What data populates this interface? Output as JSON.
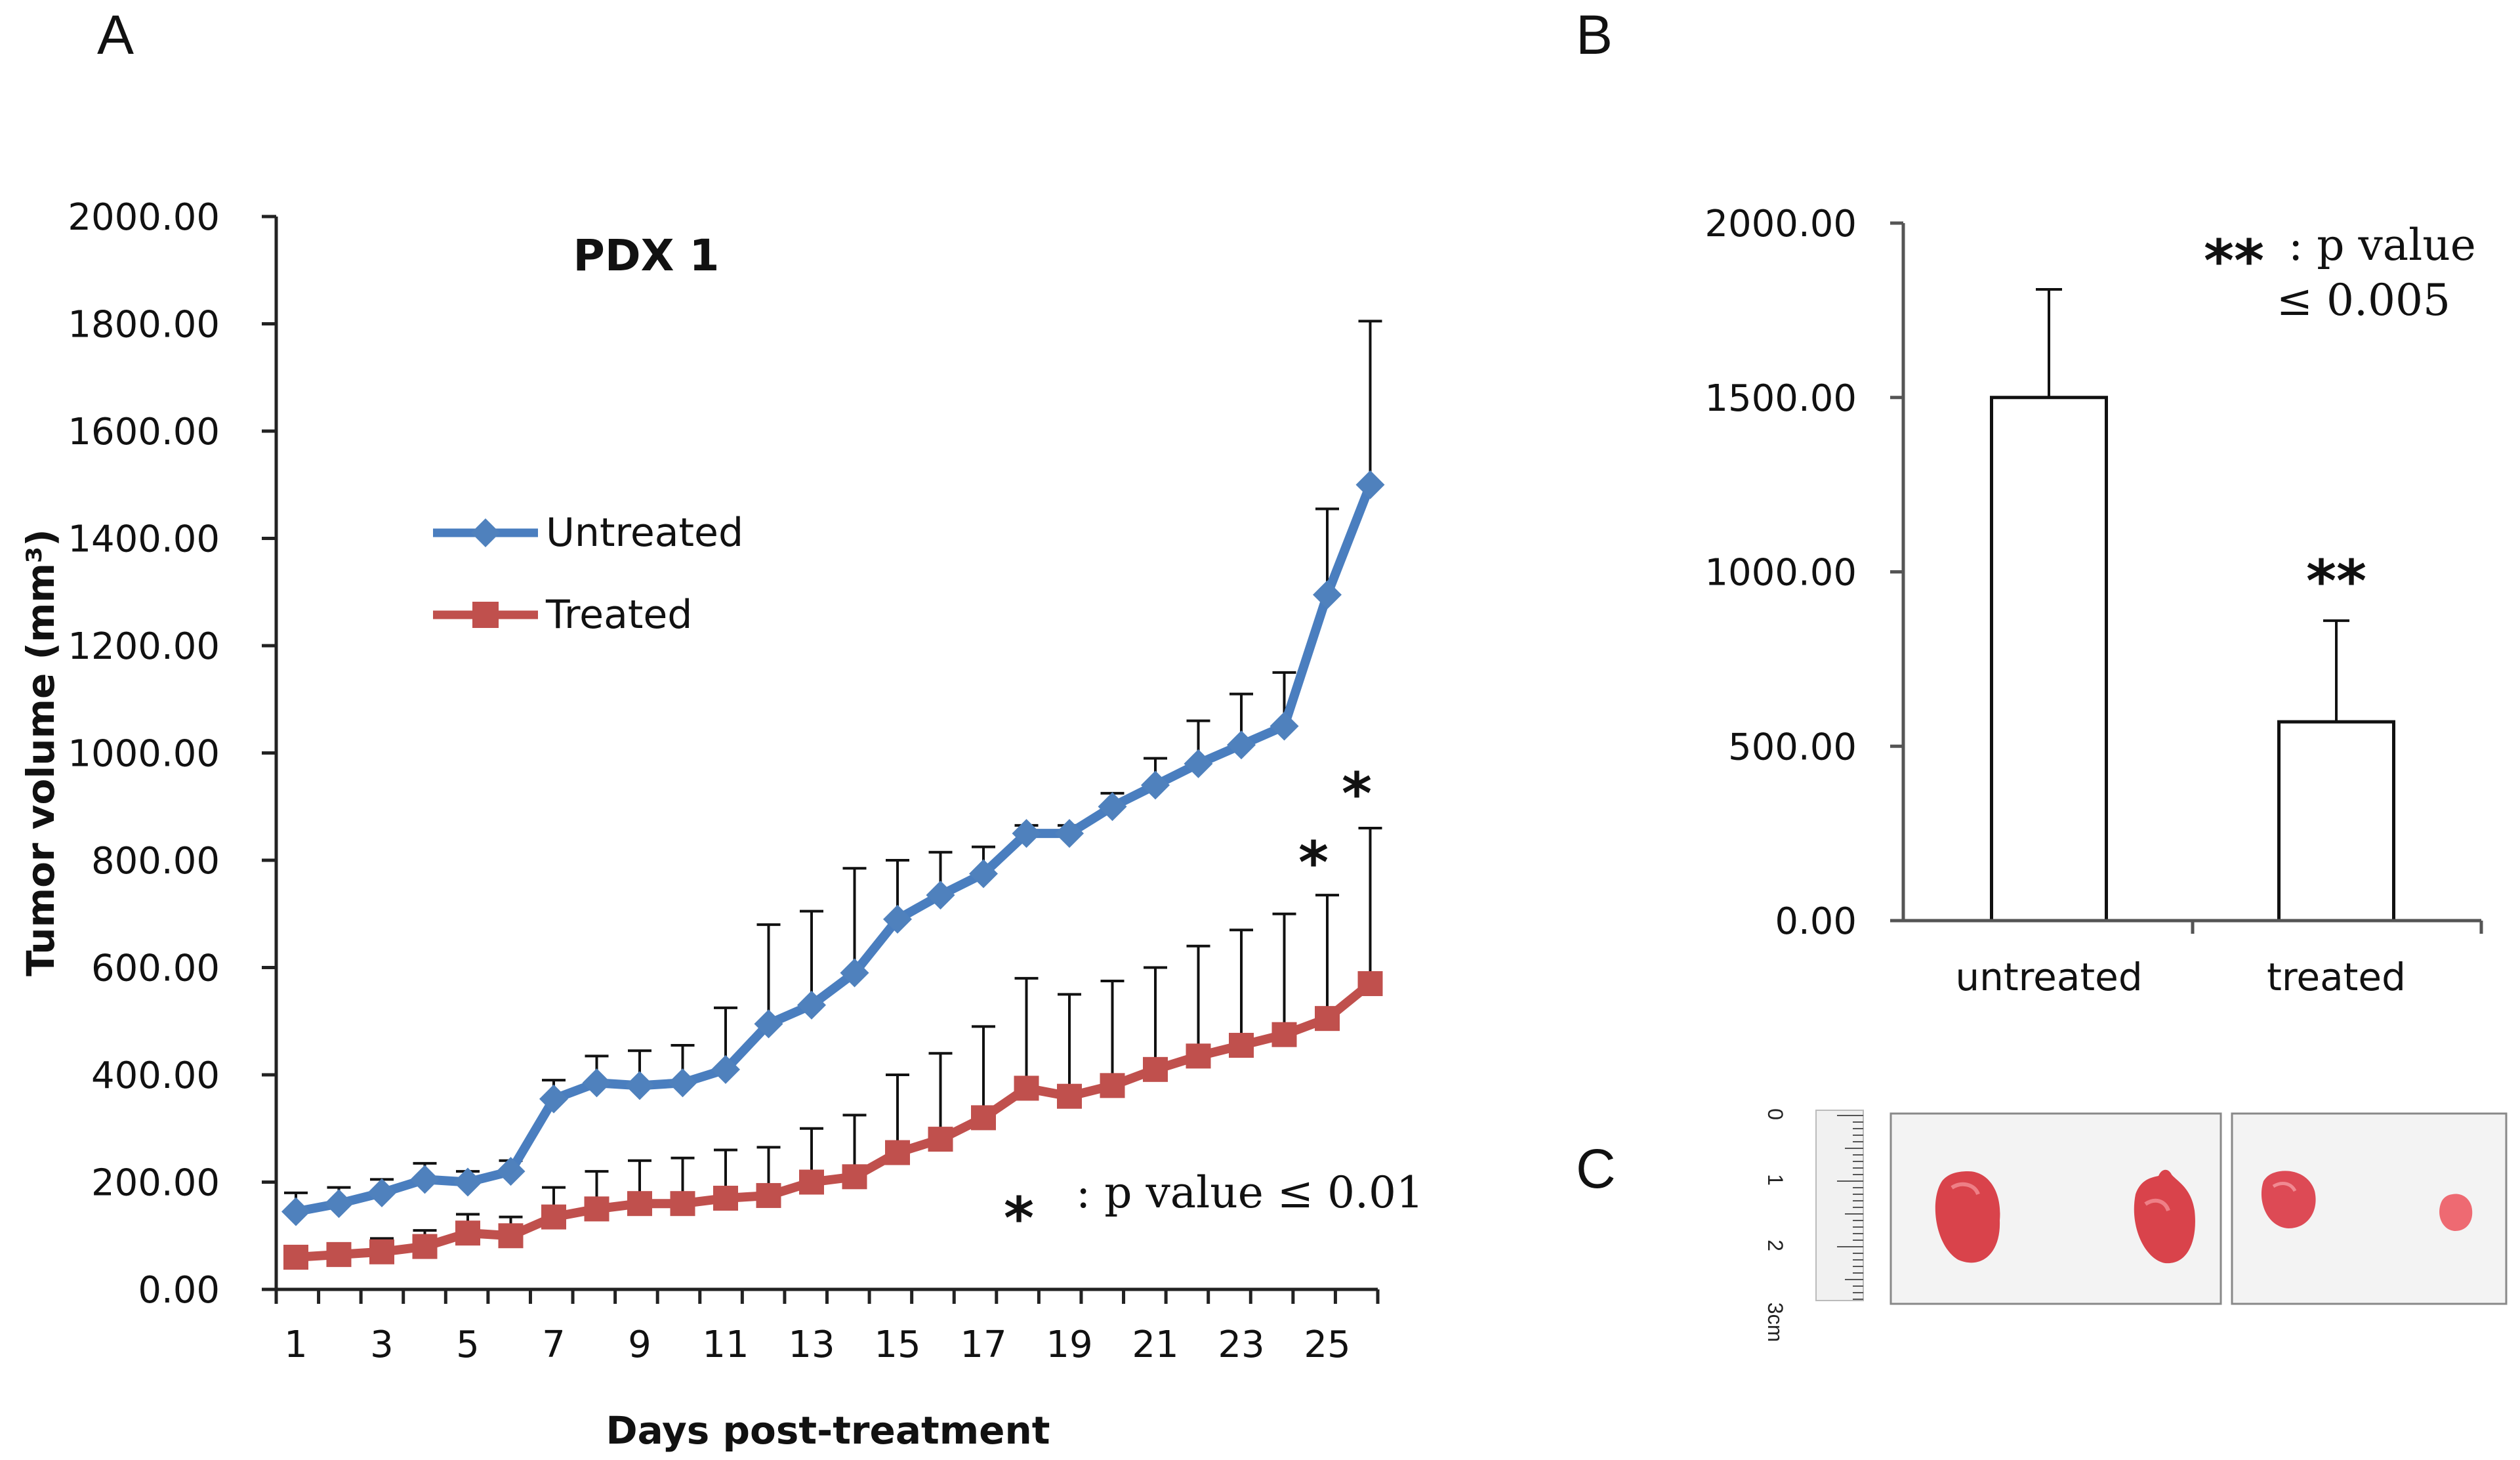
{
  "panels": {
    "a": "A",
    "b": "B",
    "c": "C"
  },
  "colors": {
    "untreated": "#4a7ebf",
    "untreated_marker": "#4f81bd",
    "treated": "#c0504d",
    "axis": "#222222",
    "tumor": "#d9434b"
  },
  "chart_data": [
    {
      "type": "line",
      "title": "PDX 1",
      "xlabel": "Days post-treatment",
      "ylabel": "Tumor volume (mm³)",
      "ylim": [
        0,
        2000
      ],
      "yticks": [
        "0.00",
        "200.00",
        "400.00",
        "600.00",
        "800.00",
        "1000.00",
        "1200.00",
        "1400.00",
        "1600.00",
        "1800.00",
        "2000.00"
      ],
      "x": [
        1,
        2,
        3,
        4,
        5,
        6,
        7,
        8,
        9,
        10,
        11,
        12,
        13,
        14,
        15,
        16,
        17,
        18,
        19,
        20,
        21,
        22,
        23,
        24,
        25,
        26
      ],
      "xtick_labels": [
        "1",
        "3",
        "5",
        "7",
        "9",
        "11",
        "13",
        "15",
        "17",
        "19",
        "21",
        "23",
        "25"
      ],
      "legend_position": "center-left",
      "series": [
        {
          "name": "Untreated",
          "marker": "diamond",
          "values": [
            145,
            160,
            180,
            205,
            200,
            220,
            355,
            385,
            380,
            385,
            410,
            495,
            530,
            590,
            690,
            735,
            775,
            850,
            850,
            900,
            940,
            980,
            1015,
            1050,
            1295,
            1500
          ],
          "error_upper": [
            35,
            30,
            25,
            30,
            20,
            20,
            35,
            50,
            65,
            70,
            115,
            185,
            175,
            195,
            110,
            80,
            50,
            15,
            15,
            25,
            50,
            80,
            95,
            100,
            160,
            305
          ]
        },
        {
          "name": "Treated",
          "marker": "square",
          "values": [
            60,
            65,
            70,
            80,
            105,
            100,
            135,
            150,
            160,
            160,
            170,
            175,
            200,
            210,
            255,
            280,
            320,
            375,
            360,
            380,
            410,
            435,
            455,
            475,
            505,
            570
          ],
          "error_upper": [
            20,
            20,
            25,
            30,
            35,
            35,
            55,
            70,
            80,
            85,
            90,
            90,
            100,
            115,
            145,
            160,
            170,
            205,
            190,
            195,
            190,
            205,
            215,
            225,
            230,
            290
          ]
        }
      ],
      "annotation": {
        "star_day25": "*",
        "star_day26": "*",
        "legend_star": "*",
        "legend_text": ": p value ≤ 0.01"
      }
    },
    {
      "type": "bar",
      "categories": [
        "untreated",
        "treated"
      ],
      "values": [
        1500,
        570
      ],
      "error_upper": [
        310,
        290
      ],
      "ylim": [
        0,
        2000
      ],
      "yticks": [
        "0.00",
        "500.00",
        "1000.00",
        "1500.00",
        "2000.00"
      ],
      "annotation": {
        "legend_stars": "**",
        "legend_line1": ": p value",
        "legend_line2": "≤ 0.005",
        "treated_stars": "**"
      }
    }
  ],
  "ruler": {
    "labels": [
      "0",
      "1",
      "2",
      "3cm"
    ]
  }
}
